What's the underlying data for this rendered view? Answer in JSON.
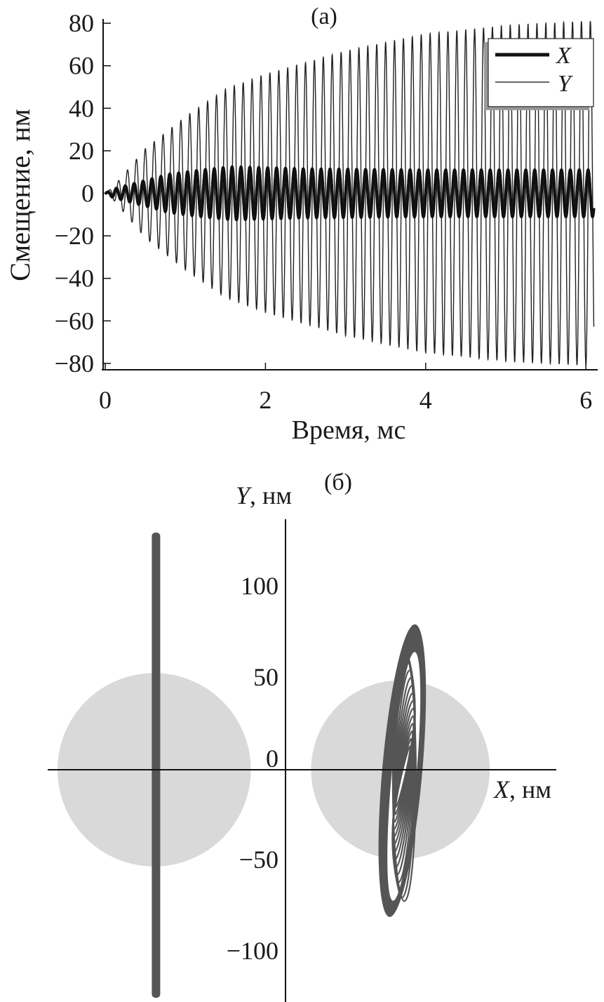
{
  "chart_data": [
    {
      "type": "line",
      "panel_label": "(a)",
      "xlabel": "Время, мс",
      "ylabel": "Смещение, нм",
      "xlim": [
        0,
        6.1
      ],
      "ylim": [
        -82,
        82
      ],
      "xticks": [
        0,
        2,
        4,
        6
      ],
      "yticks": [
        80,
        60,
        40,
        20,
        0,
        -20,
        -40,
        -60,
        -80
      ],
      "ytick_labels": [
        "80",
        "60",
        "40",
        "20",
        "0",
        "−20",
        "−40",
        "−60",
        "−80"
      ],
      "legend": {
        "placement": "top-right",
        "entries": [
          "X",
          "Y"
        ]
      },
      "oscillation_frequency_khz": 9,
      "series": [
        {
          "name": "X",
          "style": "thick",
          "envelope_t": [
            0,
            0.1,
            0.3,
            0.5,
            0.8,
            1.2,
            1.6,
            2.5,
            4,
            6.1
          ],
          "envelope_amp": [
            0,
            2,
            4,
            6,
            9,
            11,
            12.5,
            11.5,
            11,
            11
          ]
        },
        {
          "name": "Y",
          "style": "thin",
          "envelope_t": [
            0,
            0.1,
            0.3,
            0.5,
            1,
            1.5,
            2,
            3,
            4,
            5,
            6,
            6.1
          ],
          "envelope_amp": [
            0,
            3,
            12,
            21,
            36,
            49,
            56,
            67,
            75,
            79,
            81,
            81
          ]
        }
      ]
    },
    {
      "type": "scatter",
      "panel_label": "(б)",
      "xlabel_var": "X",
      "xlabel_unit": ", нм",
      "ylabel_var": "Y",
      "ylabel_unit": ", нм",
      "yticks": [
        100,
        50,
        0,
        -50,
        -100
      ],
      "ytick_labels": [
        "100",
        "50",
        "0",
        "−50",
        "−100"
      ],
      "ylim": [
        -130,
        140
      ],
      "regions": [
        {
          "name": "left-orbit",
          "center_x": -72,
          "radius": 53,
          "color": "#d9d9d9"
        },
        {
          "name": "right-orbit",
          "center_x": 63,
          "radius": 49,
          "color": "#d9d9d9"
        }
      ],
      "trajectories": [
        {
          "name": "left-trajectory",
          "center_x": -71,
          "y_range": [
            -125,
            130
          ],
          "shape": "line"
        },
        {
          "name": "right-trajectory",
          "center_x": 64,
          "y_range": [
            -81,
            80
          ],
          "half_width": 11,
          "tilt_deg": 5,
          "shape": "ellipse-spiral"
        }
      ],
      "trajectory_color": "#555555"
    }
  ]
}
